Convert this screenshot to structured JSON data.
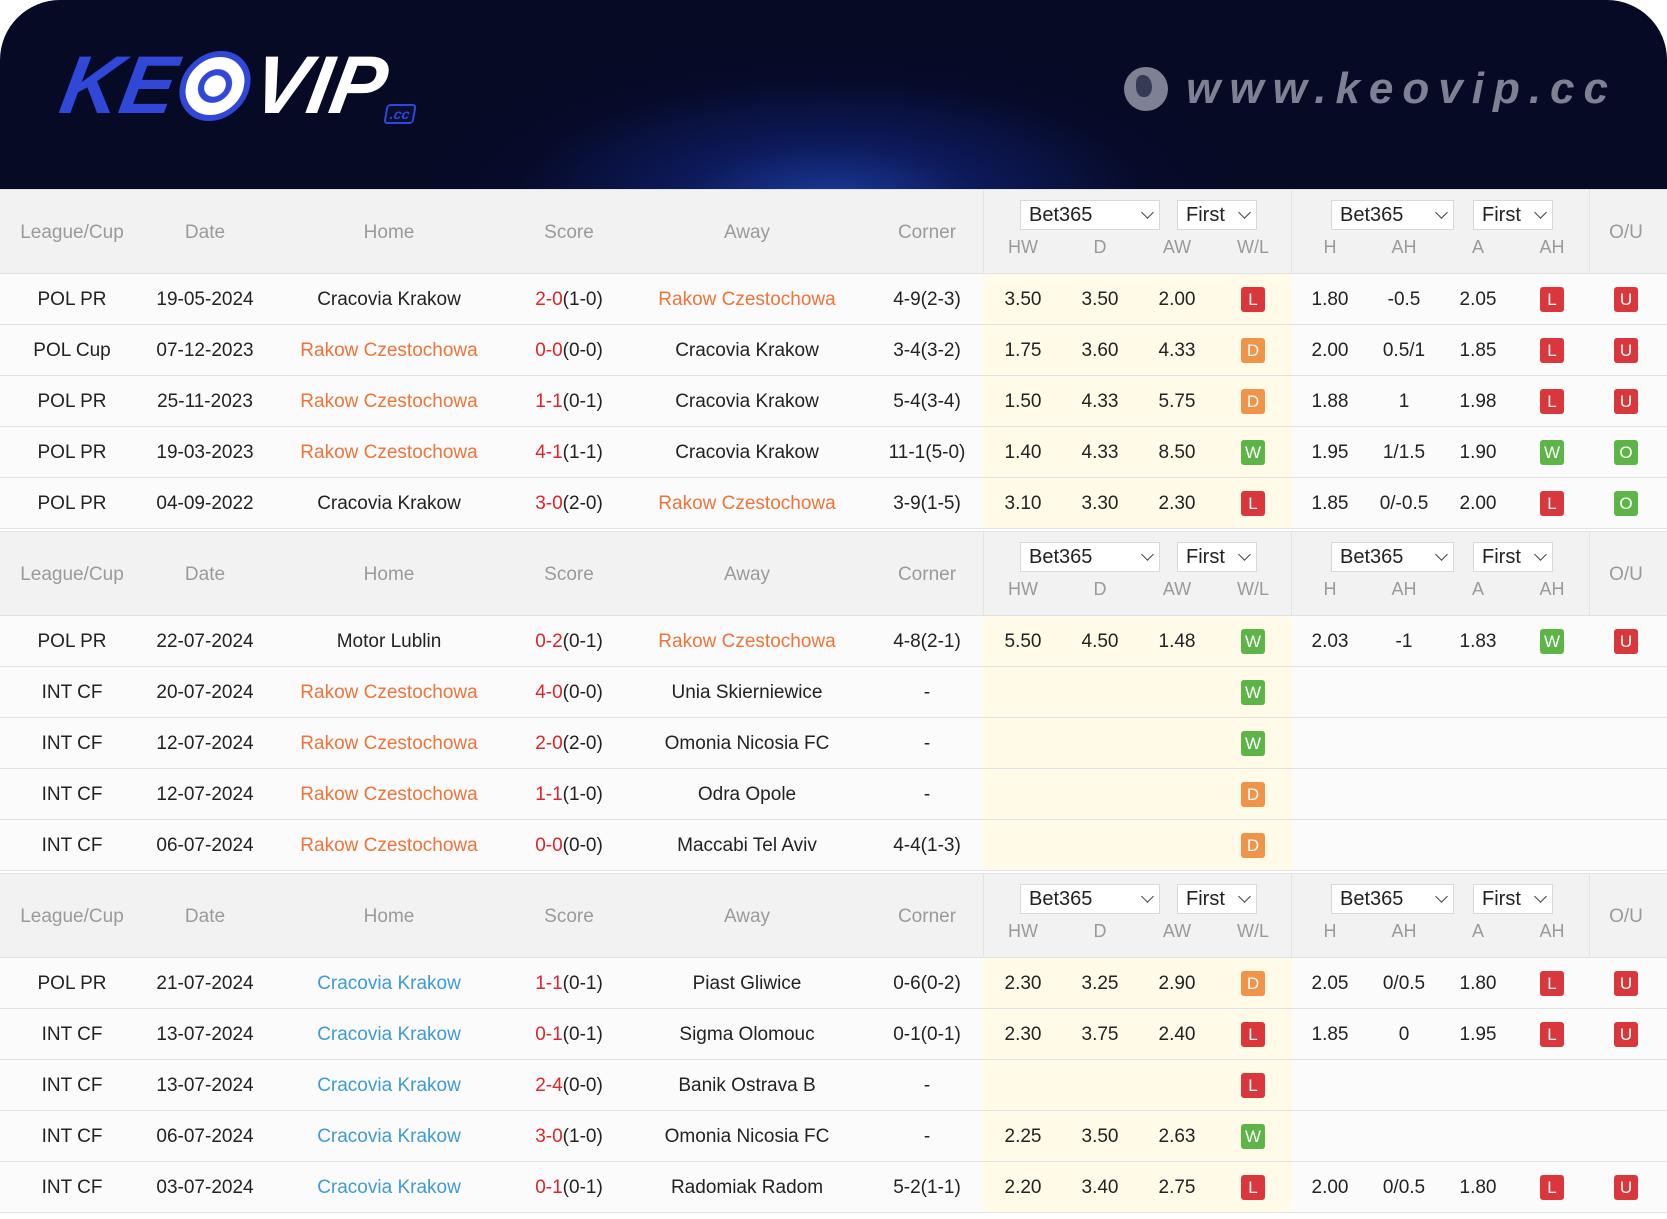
{
  "brand": {
    "logo_text_1": "KE",
    "logo_text_2": "VIP",
    "logo_suffix": ".cc",
    "site_url": "www.keovip.cc"
  },
  "colors": {
    "rakow": "#f0733a",
    "cracovia": "#3f9ad6",
    "L": "#d9373b",
    "D": "#f0944a",
    "W": "#5db548",
    "U": "#d9373b",
    "O": "#5db548",
    "highlight_odds": "#fffbe8"
  },
  "headers": {
    "league": "League/Cup",
    "date": "Date",
    "home": "Home",
    "score": "Score",
    "away": "Away",
    "corner": "Corner",
    "hw": "HW",
    "d": "D",
    "aw": "AW",
    "wl": "W/L",
    "h": "H",
    "ah": "AH",
    "a": "A",
    "ah2": "AH",
    "ou": "O/U",
    "bookmaker": "Bet365",
    "period": "First"
  },
  "sections": [
    {
      "team_color": "rakow",
      "rows": [
        {
          "league": "POL PR",
          "date": "19-05-2024",
          "home": "Cracovia Krakow",
          "score": "2-0",
          "ht": "(1-0)",
          "away": "Rakow Czestochowa",
          "hl": "away",
          "corner": "4-9(2-3)",
          "hw": "3.50",
          "d": "3.50",
          "aw": "2.00",
          "wl": "L",
          "h": "1.80",
          "ah": "-0.5",
          "a": "2.05",
          "ahr": "L",
          "ou": "U"
        },
        {
          "league": "POL Cup",
          "date": "07-12-2023",
          "home": "Rakow Czestochowa",
          "score": "0-0",
          "ht": "(0-0)",
          "away": "Cracovia Krakow",
          "hl": "home",
          "corner": "3-4(3-2)",
          "hw": "1.75",
          "d": "3.60",
          "aw": "4.33",
          "wl": "D",
          "h": "2.00",
          "ah": "0.5/1",
          "a": "1.85",
          "ahr": "L",
          "ou": "U"
        },
        {
          "league": "POL PR",
          "date": "25-11-2023",
          "home": "Rakow Czestochowa",
          "score": "1-1",
          "ht": "(0-1)",
          "away": "Cracovia Krakow",
          "hl": "home",
          "corner": "5-4(3-4)",
          "hw": "1.50",
          "d": "4.33",
          "aw": "5.75",
          "wl": "D",
          "h": "1.88",
          "ah": "1",
          "a": "1.98",
          "ahr": "L",
          "ou": "U"
        },
        {
          "league": "POL PR",
          "date": "19-03-2023",
          "home": "Rakow Czestochowa",
          "score": "4-1",
          "ht": "(1-1)",
          "away": "Cracovia Krakow",
          "hl": "home",
          "corner": "11-1(5-0)",
          "hw": "1.40",
          "d": "4.33",
          "aw": "8.50",
          "wl": "W",
          "h": "1.95",
          "ah": "1/1.5",
          "a": "1.90",
          "ahr": "W",
          "ou": "O"
        },
        {
          "league": "POL PR",
          "date": "04-09-2022",
          "home": "Cracovia Krakow",
          "score": "3-0",
          "ht": "(2-0)",
          "away": "Rakow Czestochowa",
          "hl": "away",
          "corner": "3-9(1-5)",
          "hw": "3.10",
          "d": "3.30",
          "aw": "2.30",
          "wl": "L",
          "h": "1.85",
          "ah": "0/-0.5",
          "a": "2.00",
          "ahr": "L",
          "ou": "O"
        }
      ]
    },
    {
      "team_color": "rakow",
      "rows": [
        {
          "league": "POL PR",
          "date": "22-07-2024",
          "home": "Motor Lublin",
          "score": "0-2",
          "ht": "(0-1)",
          "away": "Rakow Czestochowa",
          "hl": "away",
          "corner": "4-8(2-1)",
          "hw": "5.50",
          "d": "4.50",
          "aw": "1.48",
          "wl": "W",
          "h": "2.03",
          "ah": "-1",
          "a": "1.83",
          "ahr": "W",
          "ou": "U"
        },
        {
          "league": "INT CF",
          "date": "20-07-2024",
          "home": "Rakow Czestochowa",
          "score": "4-0",
          "ht": "(0-0)",
          "away": "Unia Skierniewice",
          "hl": "home",
          "corner": "-",
          "wl": "W"
        },
        {
          "league": "INT CF",
          "date": "12-07-2024",
          "home": "Rakow Czestochowa",
          "score": "2-0",
          "ht": "(2-0)",
          "away": "Omonia Nicosia FC",
          "hl": "home",
          "corner": "-",
          "wl": "W"
        },
        {
          "league": "INT CF",
          "date": "12-07-2024",
          "home": "Rakow Czestochowa",
          "score": "1-1",
          "ht": "(1-0)",
          "away": "Odra Opole",
          "hl": "home",
          "corner": "-",
          "wl": "D"
        },
        {
          "league": "INT CF",
          "date": "06-07-2024",
          "home": "Rakow Czestochowa",
          "score": "0-0",
          "ht": "(0-0)",
          "away": "Maccabi Tel Aviv",
          "hl": "home",
          "corner": "4-4(1-3)",
          "wl": "D"
        }
      ]
    },
    {
      "team_color": "cracovia",
      "rows": [
        {
          "league": "POL PR",
          "date": "21-07-2024",
          "home": "Cracovia Krakow",
          "score": "1-1",
          "ht": "(0-1)",
          "away": "Piast Gliwice",
          "hl": "home",
          "corner": "0-6(0-2)",
          "hw": "2.30",
          "d": "3.25",
          "aw": "2.90",
          "wl": "D",
          "h": "2.05",
          "ah": "0/0.5",
          "a": "1.80",
          "ahr": "L",
          "ou": "U"
        },
        {
          "league": "INT CF",
          "date": "13-07-2024",
          "home": "Cracovia Krakow",
          "score": "0-1",
          "ht": "(0-1)",
          "away": "Sigma Olomouc",
          "hl": "home",
          "corner": "0-1(0-1)",
          "hw": "2.30",
          "d": "3.75",
          "aw": "2.40",
          "wl": "L",
          "h": "1.85",
          "ah": "0",
          "a": "1.95",
          "ahr": "L",
          "ou": "U"
        },
        {
          "league": "INT CF",
          "date": "13-07-2024",
          "home": "Cracovia Krakow",
          "score": "2-4",
          "ht": "(0-0)",
          "away": "Banik Ostrava B",
          "hl": "home",
          "corner": "-",
          "wl": "L"
        },
        {
          "league": "INT CF",
          "date": "06-07-2024",
          "home": "Cracovia Krakow",
          "score": "3-0",
          "ht": "(1-0)",
          "away": "Omonia Nicosia FC",
          "hl": "home",
          "corner": "-",
          "hw": "2.25",
          "d": "3.50",
          "aw": "2.63",
          "wl": "W"
        },
        {
          "league": "INT CF",
          "date": "03-07-2024",
          "home": "Cracovia Krakow",
          "score": "0-1",
          "ht": "(0-1)",
          "away": "Radomiak Radom",
          "hl": "home",
          "corner": "5-2(1-1)",
          "hw": "2.20",
          "d": "3.40",
          "aw": "2.75",
          "wl": "L",
          "h": "2.00",
          "ah": "0/0.5",
          "a": "1.80",
          "ahr": "L",
          "ou": "U"
        }
      ]
    }
  ]
}
